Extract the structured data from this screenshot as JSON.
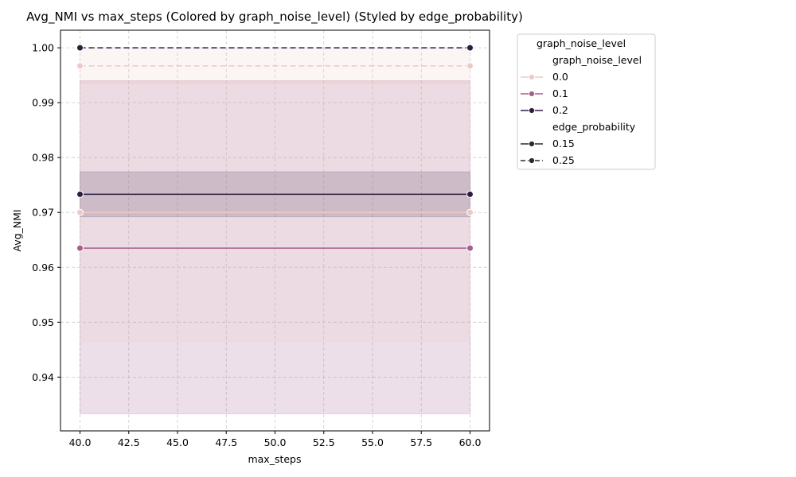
{
  "chart_data": {
    "type": "line",
    "title": "Avg_NMI vs max_steps (Colored by graph_noise_level) (Styled by edge_probability)",
    "xlabel": "max_steps",
    "ylabel": "Avg_NMI",
    "xlim": [
      39,
      61
    ],
    "ylim": [
      0.9302,
      1.0032
    ],
    "x_ticks": [
      40,
      42.5,
      45,
      47.5,
      50,
      52.5,
      55,
      57.5,
      60
    ],
    "x_tick_labels": [
      "40.0",
      "42.5",
      "45.0",
      "47.5",
      "50.0",
      "52.5",
      "55.0",
      "57.5",
      "60.0"
    ],
    "y_ticks": [
      0.94,
      0.95,
      0.96,
      0.97,
      0.98,
      0.99,
      1.0
    ],
    "y_tick_labels": [
      "0.94",
      "0.95",
      "0.96",
      "0.97",
      "0.98",
      "0.99",
      "1.00"
    ],
    "grid": true,
    "legend_position": "outside-right-top",
    "legend": {
      "title": "graph_noise_level",
      "hue_header": "graph_noise_level",
      "hue_entries": [
        {
          "label": "0.0",
          "color": "#eccbc7"
        },
        {
          "label": "0.1",
          "color": "#a65e8f"
        },
        {
          "label": "0.2",
          "color": "#2d1d40"
        }
      ],
      "style_header": "edge_probability",
      "style_entries": [
        {
          "label": "0.15",
          "dash": "solid"
        },
        {
          "label": "0.25",
          "dash": "dashed"
        }
      ]
    },
    "series": [
      {
        "graph_noise_level": "0.0",
        "edge_probability": "0.25",
        "color": "#eccbc7",
        "dash": "dashed",
        "x": [
          40,
          60
        ],
        "y": [
          0.9967,
          0.9967
        ],
        "ci": [
          0.9935,
          1.0
        ]
      },
      {
        "graph_noise_level": "0.1",
        "edge_probability": "0.15",
        "color": "#a65e8f",
        "dash": "solid",
        "x": [
          40,
          60
        ],
        "y": [
          0.9635,
          0.9635
        ],
        "ci": [
          0.9333,
          0.994
        ]
      },
      {
        "graph_noise_level": "0.2",
        "edge_probability": "0.15",
        "color": "#2d1d40",
        "dash": "solid",
        "x": [
          40,
          60
        ],
        "y": [
          0.9733,
          0.9733
        ],
        "ci": [
          0.9692,
          0.9774
        ]
      },
      {
        "graph_noise_level": "0.2",
        "edge_probability": "0.25",
        "color": "#2d1d40",
        "dash": "dashed",
        "x": [
          40,
          60
        ],
        "y": [
          1.0,
          1.0
        ],
        "ci": [
          1.0,
          1.0
        ]
      },
      {
        "graph_noise_level": "0.0",
        "edge_probability": "0.15",
        "color": "#eccbc7",
        "dash": "solid",
        "x": [
          40,
          60
        ],
        "y": [
          0.97,
          0.97
        ],
        "ci": [
          0.9465,
          0.994
        ]
      }
    ]
  }
}
